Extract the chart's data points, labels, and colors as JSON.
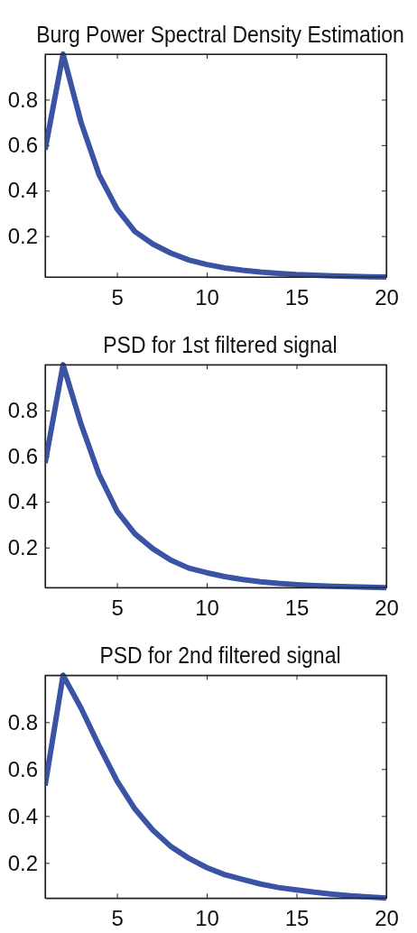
{
  "chart_data": [
    {
      "type": "line",
      "title": "Burg Power Spectral Density Estimation",
      "x": [
        1,
        2,
        3,
        4,
        5,
        6,
        7,
        8,
        9,
        10,
        11,
        12,
        13,
        14,
        15,
        16,
        17,
        18,
        19,
        20
      ],
      "series": [
        {
          "color": "#3a53a4",
          "values": [
            0.58,
            1.0,
            0.7,
            0.47,
            0.32,
            0.22,
            0.165,
            0.125,
            0.095,
            0.075,
            0.06,
            0.05,
            0.042,
            0.036,
            0.031,
            0.028,
            0.025,
            0.023,
            0.021,
            0.02
          ]
        }
      ],
      "xlim": [
        1,
        20
      ],
      "xticks": [
        5,
        10,
        15,
        20
      ],
      "ylim": [
        0.02,
        1
      ],
      "yticks": [
        0.2,
        0.4,
        0.6,
        0.8
      ]
    },
    {
      "type": "line",
      "title": "PSD for 1st filtered signal",
      "x": [
        1,
        2,
        3,
        4,
        5,
        6,
        7,
        8,
        9,
        10,
        11,
        12,
        13,
        14,
        15,
        16,
        17,
        18,
        19,
        20
      ],
      "series": [
        {
          "color": "#3a53a4",
          "values": [
            0.57,
            1.0,
            0.74,
            0.52,
            0.36,
            0.26,
            0.195,
            0.145,
            0.11,
            0.09,
            0.073,
            0.06,
            0.05,
            0.043,
            0.038,
            0.034,
            0.031,
            0.029,
            0.027,
            0.025
          ]
        }
      ],
      "xlim": [
        1,
        20
      ],
      "xticks": [
        5,
        10,
        15,
        20
      ],
      "ylim": [
        0.025,
        1
      ],
      "yticks": [
        0.2,
        0.4,
        0.6,
        0.8
      ]
    },
    {
      "type": "line",
      "title": "PSD for 2nd filtered signal",
      "x": [
        1,
        2,
        3,
        4,
        5,
        6,
        7,
        8,
        9,
        10,
        11,
        12,
        13,
        14,
        15,
        16,
        17,
        18,
        19,
        20
      ],
      "series": [
        {
          "color": "#3a53a4",
          "values": [
            0.53,
            1.0,
            0.86,
            0.7,
            0.55,
            0.43,
            0.34,
            0.27,
            0.22,
            0.18,
            0.15,
            0.13,
            0.11,
            0.095,
            0.085,
            0.075,
            0.067,
            0.06,
            0.055,
            0.05
          ]
        }
      ],
      "xlim": [
        1,
        20
      ],
      "xticks": [
        5,
        10,
        15,
        20
      ],
      "ylim": [
        0.05,
        1
      ],
      "yticks": [
        0.2,
        0.4,
        0.6,
        0.8
      ]
    }
  ]
}
